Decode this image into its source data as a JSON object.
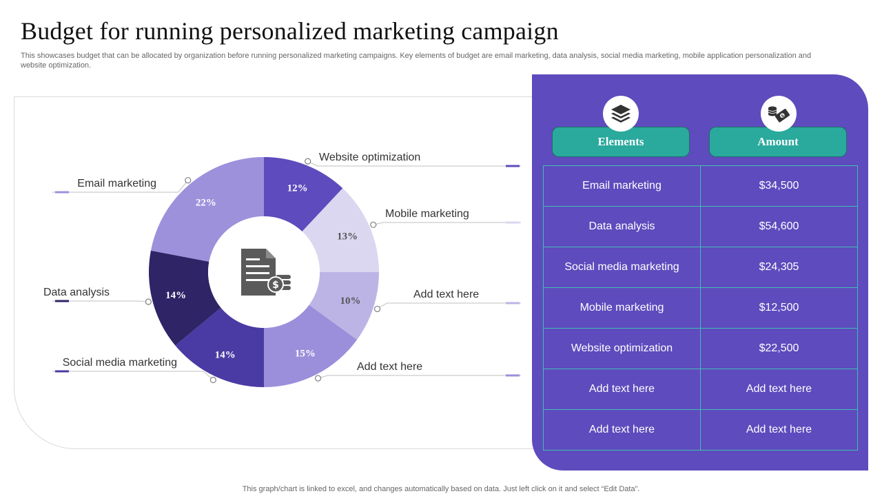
{
  "title": "Budget for running personalized marketing campaign",
  "subtitle": "This showcases budget that can be allocated by organization before running personalized marketing campaigns. Key elements of budget are email marketing, data analysis, social media marketing, mobile application personalization and website optimization.",
  "footer": "This graph/chart is linked to excel,  and changes automatically based on data. Just left click on it and select “Edit Data”.",
  "center_icon": "document-dollar-icon",
  "chart_data": {
    "type": "pie",
    "variant": "donut",
    "labels_style": "leader-lines",
    "slices": [
      {
        "label": "Website optimization",
        "value": 12,
        "display": "12%",
        "color": "#5e4bbd",
        "text_color": "#ffffff"
      },
      {
        "label": "Mobile marketing",
        "value": 13,
        "display": "13%",
        "color": "#dcd7f0",
        "text_color": "#555555"
      },
      {
        "label": "Add text here",
        "value": 10,
        "display": "10%",
        "color": "#bdb4e6",
        "text_color": "#555555"
      },
      {
        "label": "Add text here",
        "value": 15,
        "display": "15%",
        "color": "#9b8fdb",
        "text_color": "#ffffff"
      },
      {
        "label": "Social media marketing",
        "value": 14,
        "display": "14%",
        "color": "#4a3aa3",
        "text_color": "#ffffff"
      },
      {
        "label": "Data analysis",
        "value": 14,
        "display": "14%",
        "color": "#2e2466",
        "text_color": "#ffffff"
      },
      {
        "label": "Email marketing",
        "value": 22,
        "display": "22%",
        "color": "#9d91dc",
        "text_color": "#ffffff"
      }
    ]
  },
  "table": {
    "icons": [
      "layers-icon",
      "money-icon"
    ],
    "headers": {
      "elements": "Elements",
      "amount": "Amount"
    },
    "rows": [
      {
        "element": "Email marketing",
        "amount": "$34,500"
      },
      {
        "element": "Data analysis",
        "amount": "$54,600"
      },
      {
        "element": "Social media marketing",
        "amount": "$24,305"
      },
      {
        "element": "Mobile marketing",
        "amount": "$12,500"
      },
      {
        "element": "Website optimization",
        "amount": "$22,500"
      },
      {
        "element": "Add text here",
        "amount": "Add text here"
      },
      {
        "element": "Add text here",
        "amount": "Add text here"
      }
    ]
  },
  "colors": {
    "panel": "#5e4bbd",
    "header": "#2aa99d",
    "grid": "#41bfb4"
  }
}
